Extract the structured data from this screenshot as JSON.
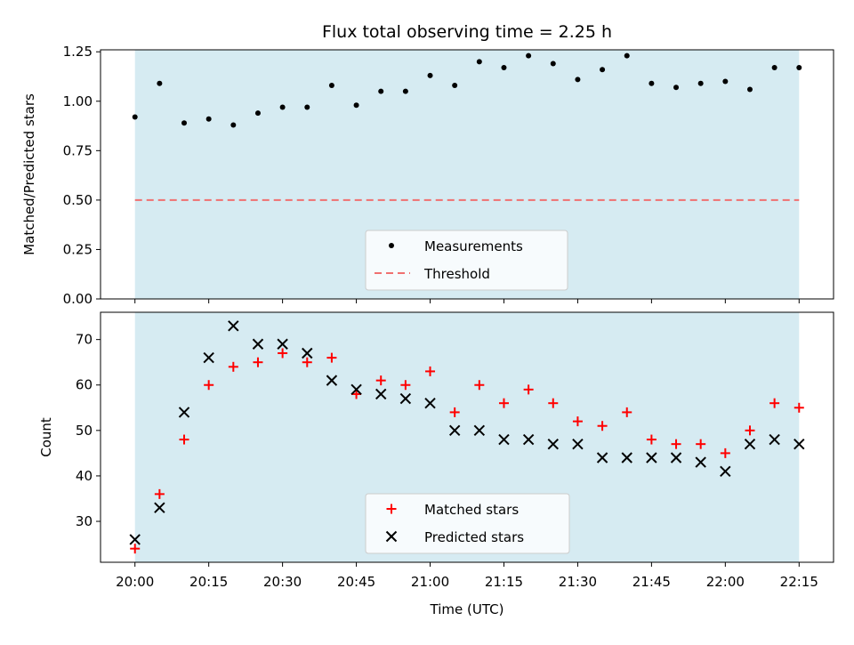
{
  "chart_data": [
    {
      "type": "scatter",
      "title": "Flux total observing time = 2.25 h",
      "ylabel": "Matched/Predicted stars",
      "xlim": [
        "19:53",
        "22:22"
      ],
      "ylim": [
        0,
        1.26
      ],
      "y_ticks": [
        "0.00",
        "0.25",
        "0.50",
        "0.75",
        "1.00",
        "1.25"
      ],
      "shaded_span": [
        "20:00",
        "22:15"
      ],
      "shade_color": "#add8e6",
      "x": [
        "20:00",
        "20:05",
        "20:10",
        "20:15",
        "20:20",
        "20:25",
        "20:30",
        "20:35",
        "20:40",
        "20:45",
        "20:50",
        "20:55",
        "21:00",
        "21:05",
        "21:10",
        "21:15",
        "21:20",
        "21:25",
        "21:30",
        "21:35",
        "21:40",
        "21:45",
        "21:50",
        "21:55",
        "22:00",
        "22:05",
        "22:10",
        "22:15"
      ],
      "series": [
        {
          "name": "Measurements",
          "marker": "dot",
          "color": "#000000",
          "values": [
            0.92,
            1.09,
            0.89,
            0.91,
            0.88,
            0.94,
            0.97,
            0.97,
            1.08,
            0.98,
            1.05,
            1.05,
            1.13,
            1.08,
            1.2,
            1.17,
            1.23,
            1.19,
            1.11,
            1.16,
            1.23,
            1.09,
            1.07,
            1.09,
            1.1,
            1.06,
            1.17,
            1.17
          ]
        }
      ],
      "threshold": {
        "name": "Threshold",
        "value": 0.5,
        "color": "#f07070",
        "style": "dashed"
      },
      "legend_position": "bottom-center",
      "grid": false
    },
    {
      "type": "scatter",
      "xlabel": "Time (UTC)",
      "ylabel": "Count",
      "xlim": [
        "19:53",
        "22:22"
      ],
      "ylim": [
        21,
        76
      ],
      "y_ticks": [
        "30",
        "40",
        "50",
        "60",
        "70"
      ],
      "x_ticks": [
        "20:00",
        "20:15",
        "20:30",
        "20:45",
        "21:00",
        "21:15",
        "21:30",
        "21:45",
        "22:00",
        "22:15"
      ],
      "shaded_span": [
        "20:00",
        "22:15"
      ],
      "shade_color": "#add8e6",
      "x": [
        "20:00",
        "20:05",
        "20:10",
        "20:15",
        "20:20",
        "20:25",
        "20:30",
        "20:35",
        "20:40",
        "20:45",
        "20:50",
        "20:55",
        "21:00",
        "21:05",
        "21:10",
        "21:15",
        "21:20",
        "21:25",
        "21:30",
        "21:35",
        "21:40",
        "21:45",
        "21:50",
        "21:55",
        "22:00",
        "22:05",
        "22:10",
        "22:15"
      ],
      "series": [
        {
          "name": "Matched stars",
          "marker": "plus",
          "color": "#ff0000",
          "values": [
            24,
            36,
            48,
            60,
            64,
            65,
            67,
            65,
            66,
            58,
            61,
            60,
            63,
            54,
            60,
            56,
            59,
            56,
            52,
            51,
            54,
            48,
            47,
            47,
            45,
            50,
            56,
            55
          ]
        },
        {
          "name": "Predicted stars",
          "marker": "x",
          "color": "#000000",
          "values": [
            26,
            33,
            54,
            66,
            73,
            69,
            69,
            67,
            61,
            59,
            58,
            57,
            56,
            50,
            50,
            48,
            48,
            47,
            47,
            44,
            44,
            44,
            44,
            43,
            41,
            47,
            48,
            47
          ]
        }
      ],
      "legend_position": "bottom-center",
      "grid": false
    }
  ]
}
